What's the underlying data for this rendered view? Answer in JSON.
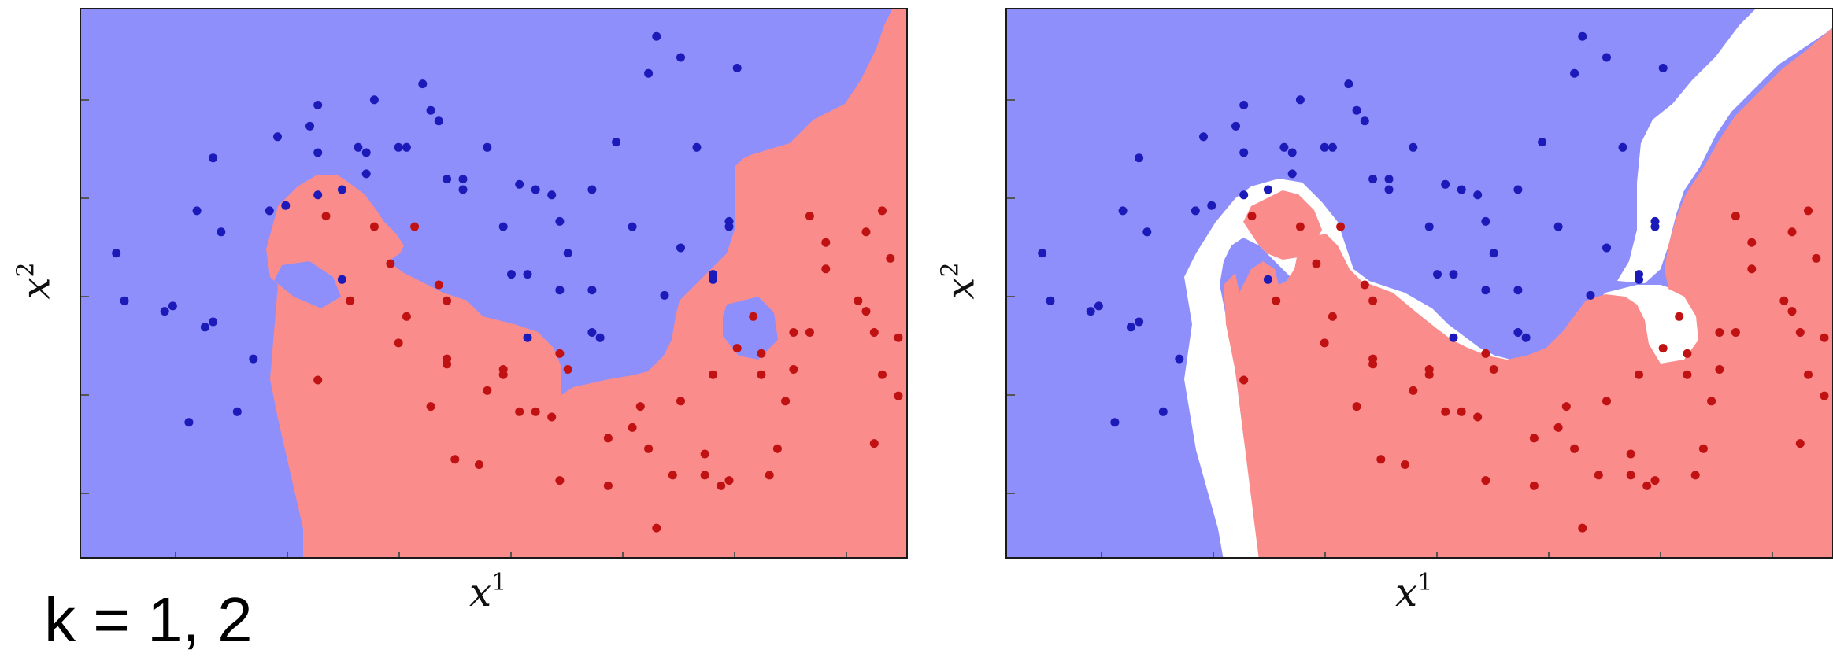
{
  "caption": "k = 1, 2",
  "colors": {
    "blue_region": "#8f8ffb",
    "red_region": "#fb8c8c",
    "tie_region": "#ffffff",
    "blue_point": "#1c1ab8",
    "red_point": "#c01212"
  },
  "chart_data": [
    {
      "type": "scatter",
      "panel": "left",
      "k": 1,
      "xlabel": "x",
      "xlabel_sup": "1",
      "ylabel": "x",
      "ylabel_sup": "2",
      "xlim": [
        0,
        1
      ],
      "ylim": [
        0,
        1
      ],
      "background": "decision regions (blue / red)",
      "series": [
        {
          "color": "blue",
          "points": [
            [
              0.03,
              0.56
            ],
            [
              0.04,
              0.47
            ],
            [
              0.09,
              0.45
            ],
            [
              0.1,
              0.46
            ],
            [
              0.12,
              0.24
            ],
            [
              0.13,
              0.64
            ],
            [
              0.15,
              0.74
            ],
            [
              0.16,
              0.6
            ],
            [
              0.15,
              0.43
            ],
            [
              0.14,
              0.42
            ],
            [
              0.18,
              0.26
            ],
            [
              0.2,
              0.36
            ],
            [
              0.22,
              0.64
            ],
            [
              0.23,
              0.78
            ],
            [
              0.24,
              0.65
            ],
            [
              0.27,
              0.8
            ],
            [
              0.28,
              0.84
            ],
            [
              0.28,
              0.75
            ],
            [
              0.28,
              0.67
            ],
            [
              0.31,
              0.68
            ],
            [
              0.33,
              0.76
            ],
            [
              0.34,
              0.75
            ],
            [
              0.35,
              0.85
            ],
            [
              0.38,
              0.76
            ],
            [
              0.39,
              0.76
            ],
            [
              0.41,
              0.88
            ],
            [
              0.42,
              0.83
            ],
            [
              0.43,
              0.81
            ],
            [
              0.44,
              0.7
            ],
            [
              0.46,
              0.7
            ],
            [
              0.46,
              0.68
            ],
            [
              0.49,
              0.76
            ],
            [
              0.51,
              0.61
            ],
            [
              0.52,
              0.52
            ],
            [
              0.54,
              0.52
            ],
            [
              0.55,
              0.68
            ],
            [
              0.57,
              0.67
            ],
            [
              0.58,
              0.62
            ],
            [
              0.59,
              0.56
            ],
            [
              0.62,
              0.49
            ],
            [
              0.65,
              0.77
            ],
            [
              0.67,
              0.61
            ],
            [
              0.69,
              0.9
            ],
            [
              0.75,
              0.76
            ],
            [
              0.77,
              0.52
            ],
            [
              0.77,
              0.51
            ],
            [
              0.7,
              0.97
            ],
            [
              0.73,
              0.57
            ],
            [
              0.58,
              0.49
            ],
            [
              0.62,
              0.41
            ],
            [
              0.34,
              0.71
            ],
            [
              0.31,
              0.51
            ],
            [
              0.53,
              0.69
            ],
            [
              0.54,
              0.4
            ],
            [
              0.71,
              0.48
            ],
            [
              0.73,
              0.93
            ],
            [
              0.62,
              0.68
            ],
            [
              0.8,
              0.91
            ],
            [
              0.79,
              0.61
            ],
            [
              0.79,
              0.62
            ],
            [
              0.63,
              0.4
            ]
          ]
        },
        {
          "color": "red",
          "points": [
            [
              0.28,
              0.32
            ],
            [
              0.29,
              0.63
            ],
            [
              0.32,
              0.47
            ],
            [
              0.35,
              0.61
            ],
            [
              0.37,
              0.54
            ],
            [
              0.38,
              0.39
            ],
            [
              0.39,
              0.44
            ],
            [
              0.4,
              0.61
            ],
            [
              0.42,
              0.27
            ],
            [
              0.43,
              0.5
            ],
            [
              0.44,
              0.47
            ],
            [
              0.44,
              0.36
            ],
            [
              0.44,
              0.35
            ],
            [
              0.45,
              0.17
            ],
            [
              0.48,
              0.16
            ],
            [
              0.49,
              0.3
            ],
            [
              0.51,
              0.34
            ],
            [
              0.51,
              0.33
            ],
            [
              0.53,
              0.26
            ],
            [
              0.55,
              0.26
            ],
            [
              0.57,
              0.25
            ],
            [
              0.58,
              0.13
            ],
            [
              0.58,
              0.37
            ],
            [
              0.59,
              0.34
            ],
            [
              0.64,
              0.21
            ],
            [
              0.64,
              0.12
            ],
            [
              0.67,
              0.23
            ],
            [
              0.68,
              0.27
            ],
            [
              0.69,
              0.19
            ],
            [
              0.7,
              0.04
            ],
            [
              0.72,
              0.14
            ],
            [
              0.73,
              0.28
            ],
            [
              0.76,
              0.18
            ],
            [
              0.76,
              0.14
            ],
            [
              0.77,
              0.33
            ],
            [
              0.78,
              0.12
            ],
            [
              0.79,
              0.13
            ],
            [
              0.8,
              0.38
            ],
            [
              0.82,
              0.44
            ],
            [
              0.83,
              0.33
            ],
            [
              0.83,
              0.37
            ],
            [
              0.84,
              0.14
            ],
            [
              0.85,
              0.19
            ],
            [
              0.86,
              0.28
            ],
            [
              0.87,
              0.41
            ],
            [
              0.87,
              0.34
            ],
            [
              0.89,
              0.41
            ],
            [
              0.91,
              0.58
            ],
            [
              0.91,
              0.53
            ],
            [
              0.89,
              0.63
            ],
            [
              0.95,
              0.47
            ],
            [
              0.96,
              0.45
            ],
            [
              0.97,
              0.41
            ],
            [
              0.96,
              0.6
            ],
            [
              0.98,
              0.33
            ],
            [
              0.98,
              0.64
            ],
            [
              0.99,
              0.55
            ],
            [
              1.0,
              0.4
            ],
            [
              0.97,
              0.2
            ],
            [
              1.0,
              0.29
            ]
          ]
        }
      ]
    },
    {
      "type": "scatter",
      "panel": "right",
      "k": 2,
      "xlabel": "x",
      "xlabel_sup": "1",
      "ylabel": "x",
      "ylabel_sup": "2",
      "xlim": [
        0,
        1
      ],
      "ylim": [
        0,
        1
      ],
      "background": "decision regions (blue / red / white tie)",
      "series": [
        {
          "color": "blue",
          "points": [
            [
              0.03,
              0.56
            ],
            [
              0.04,
              0.47
            ],
            [
              0.09,
              0.45
            ],
            [
              0.1,
              0.46
            ],
            [
              0.12,
              0.24
            ],
            [
              0.13,
              0.64
            ],
            [
              0.15,
              0.74
            ],
            [
              0.16,
              0.6
            ],
            [
              0.15,
              0.43
            ],
            [
              0.14,
              0.42
            ],
            [
              0.18,
              0.26
            ],
            [
              0.2,
              0.36
            ],
            [
              0.22,
              0.64
            ],
            [
              0.23,
              0.78
            ],
            [
              0.24,
              0.65
            ],
            [
              0.27,
              0.8
            ],
            [
              0.28,
              0.84
            ],
            [
              0.28,
              0.75
            ],
            [
              0.28,
              0.67
            ],
            [
              0.31,
              0.68
            ],
            [
              0.33,
              0.76
            ],
            [
              0.34,
              0.75
            ],
            [
              0.35,
              0.85
            ],
            [
              0.38,
              0.76
            ],
            [
              0.39,
              0.76
            ],
            [
              0.41,
              0.88
            ],
            [
              0.42,
              0.83
            ],
            [
              0.43,
              0.81
            ],
            [
              0.44,
              0.7
            ],
            [
              0.46,
              0.7
            ],
            [
              0.46,
              0.68
            ],
            [
              0.49,
              0.76
            ],
            [
              0.51,
              0.61
            ],
            [
              0.52,
              0.52
            ],
            [
              0.54,
              0.52
            ],
            [
              0.55,
              0.68
            ],
            [
              0.57,
              0.67
            ],
            [
              0.58,
              0.62
            ],
            [
              0.59,
              0.56
            ],
            [
              0.62,
              0.49
            ],
            [
              0.65,
              0.77
            ],
            [
              0.67,
              0.61
            ],
            [
              0.69,
              0.9
            ],
            [
              0.75,
              0.76
            ],
            [
              0.77,
              0.52
            ],
            [
              0.77,
              0.51
            ],
            [
              0.7,
              0.97
            ],
            [
              0.73,
              0.57
            ],
            [
              0.58,
              0.49
            ],
            [
              0.62,
              0.41
            ],
            [
              0.34,
              0.71
            ],
            [
              0.31,
              0.51
            ],
            [
              0.53,
              0.69
            ],
            [
              0.54,
              0.4
            ],
            [
              0.71,
              0.48
            ],
            [
              0.73,
              0.93
            ],
            [
              0.62,
              0.68
            ],
            [
              0.8,
              0.91
            ],
            [
              0.79,
              0.61
            ],
            [
              0.79,
              0.62
            ],
            [
              0.63,
              0.4
            ]
          ]
        },
        {
          "color": "red",
          "points": [
            [
              0.28,
              0.32
            ],
            [
              0.29,
              0.63
            ],
            [
              0.32,
              0.47
            ],
            [
              0.35,
              0.61
            ],
            [
              0.37,
              0.54
            ],
            [
              0.38,
              0.39
            ],
            [
              0.39,
              0.44
            ],
            [
              0.4,
              0.61
            ],
            [
              0.42,
              0.27
            ],
            [
              0.43,
              0.5
            ],
            [
              0.44,
              0.47
            ],
            [
              0.44,
              0.36
            ],
            [
              0.44,
              0.35
            ],
            [
              0.45,
              0.17
            ],
            [
              0.48,
              0.16
            ],
            [
              0.49,
              0.3
            ],
            [
              0.51,
              0.34
            ],
            [
              0.51,
              0.33
            ],
            [
              0.53,
              0.26
            ],
            [
              0.55,
              0.26
            ],
            [
              0.57,
              0.25
            ],
            [
              0.58,
              0.13
            ],
            [
              0.58,
              0.37
            ],
            [
              0.59,
              0.34
            ],
            [
              0.64,
              0.21
            ],
            [
              0.64,
              0.12
            ],
            [
              0.67,
              0.23
            ],
            [
              0.68,
              0.27
            ],
            [
              0.69,
              0.19
            ],
            [
              0.7,
              0.04
            ],
            [
              0.72,
              0.14
            ],
            [
              0.73,
              0.28
            ],
            [
              0.76,
              0.18
            ],
            [
              0.76,
              0.14
            ],
            [
              0.77,
              0.33
            ],
            [
              0.78,
              0.12
            ],
            [
              0.79,
              0.13
            ],
            [
              0.8,
              0.38
            ],
            [
              0.82,
              0.44
            ],
            [
              0.83,
              0.33
            ],
            [
              0.83,
              0.37
            ],
            [
              0.84,
              0.14
            ],
            [
              0.85,
              0.19
            ],
            [
              0.86,
              0.28
            ],
            [
              0.87,
              0.41
            ],
            [
              0.87,
              0.34
            ],
            [
              0.89,
              0.41
            ],
            [
              0.91,
              0.58
            ],
            [
              0.91,
              0.53
            ],
            [
              0.89,
              0.63
            ],
            [
              0.95,
              0.47
            ],
            [
              0.96,
              0.45
            ],
            [
              0.97,
              0.41
            ],
            [
              0.96,
              0.6
            ],
            [
              0.98,
              0.33
            ],
            [
              0.98,
              0.64
            ],
            [
              0.99,
              0.55
            ],
            [
              1.0,
              0.4
            ],
            [
              0.97,
              0.2
            ],
            [
              1.0,
              0.29
            ]
          ]
        }
      ]
    }
  ]
}
